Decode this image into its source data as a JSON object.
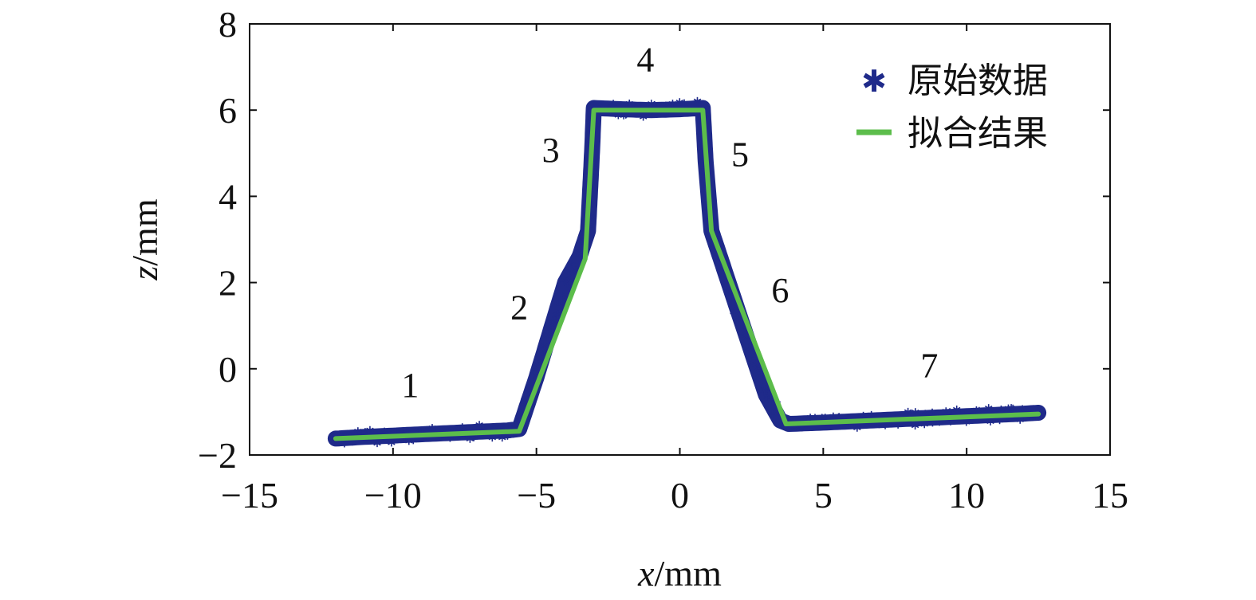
{
  "chart_data": {
    "type": "scatter",
    "title": "",
    "xlabel": {
      "var": "x",
      "unit": "/mm"
    },
    "ylabel": {
      "var": "z",
      "unit": "/mm"
    },
    "xlim": [
      -15,
      15
    ],
    "ylim": [
      -2,
      8
    ],
    "xticks": [
      "−15",
      "−10",
      "−5",
      "0",
      "5",
      "10",
      "15"
    ],
    "xtick_values": [
      -15,
      -10,
      -5,
      0,
      5,
      10,
      15
    ],
    "yticks": [
      "−2",
      "0",
      "2",
      "4",
      "6",
      "8"
    ],
    "ytick_values": [
      -2,
      0,
      2,
      4,
      6,
      8
    ],
    "grid": false,
    "legend_position": "top-right",
    "series": [
      {
        "name": "原始数据",
        "kind": "scatter",
        "marker": "asterisk",
        "color": "#1f2a8a",
        "x": [
          -12.0,
          -11.0,
          -10.0,
          -9.0,
          -8.0,
          -7.0,
          -6.0,
          -5.6,
          -5.0,
          -4.5,
          -4.0,
          -3.5,
          -3.2,
          -3.1,
          -3.05,
          -3.0,
          -2.0,
          -1.0,
          0.0,
          0.8,
          0.9,
          1.0,
          1.1,
          1.5,
          2.0,
          2.5,
          3.0,
          3.5,
          3.8,
          5.0,
          6.0,
          7.0,
          8.0,
          9.0,
          10.0,
          11.0,
          12.0,
          12.5
        ],
        "y": [
          -1.62,
          -1.58,
          -1.55,
          -1.52,
          -1.49,
          -1.46,
          -1.43,
          -1.4,
          -0.2,
          0.9,
          2.0,
          2.6,
          3.2,
          4.5,
          5.2,
          6.05,
          6.02,
          6.0,
          6.02,
          6.05,
          4.8,
          4.0,
          3.2,
          2.4,
          1.4,
          0.4,
          -0.6,
          -1.2,
          -1.28,
          -1.25,
          -1.22,
          -1.19,
          -1.16,
          -1.13,
          -1.1,
          -1.07,
          -1.04,
          -1.02
        ]
      },
      {
        "name": "拟合结果",
        "kind": "line",
        "color": "#5cbd4b",
        "x": [
          -12.0,
          -5.6,
          -3.3,
          -3.0,
          0.8,
          1.1,
          3.7,
          12.5
        ],
        "y": [
          -1.62,
          -1.45,
          2.55,
          6.0,
          6.0,
          3.2,
          -1.28,
          -1.05
        ]
      }
    ],
    "annotations": [
      {
        "text": "1",
        "x": -9.4,
        "y": -0.65
      },
      {
        "text": "2",
        "x": -5.6,
        "y": 1.15
      },
      {
        "text": "3",
        "x": -4.5,
        "y": 4.8
      },
      {
        "text": "4",
        "x": -1.2,
        "y": 6.9
      },
      {
        "text": "5",
        "x": 2.1,
        "y": 4.7
      },
      {
        "text": "6",
        "x": 3.5,
        "y": 1.55
      },
      {
        "text": "7",
        "x": 8.7,
        "y": -0.2
      }
    ]
  }
}
